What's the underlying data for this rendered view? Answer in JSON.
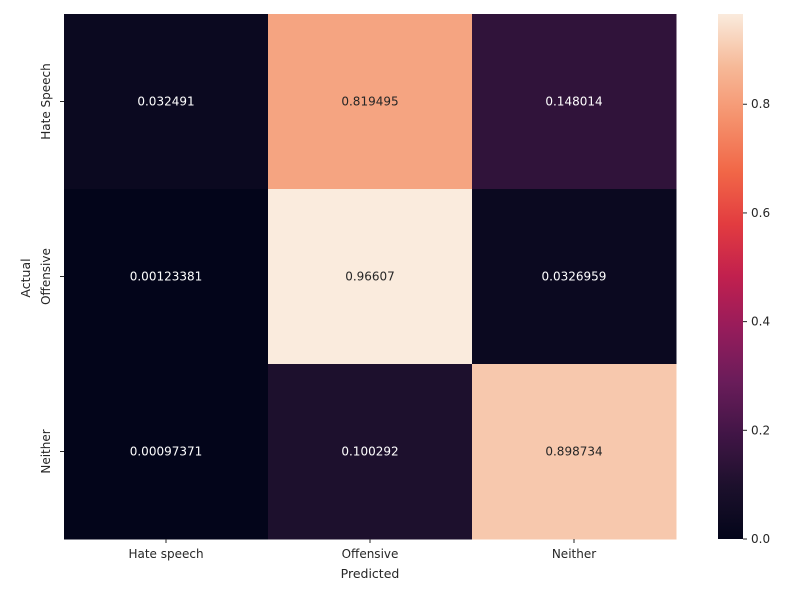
{
  "chart_data": {
    "type": "heatmap",
    "xlabel": "Predicted",
    "ylabel": "Actual",
    "x_categories": [
      "Hate speech",
      "Offensive",
      "Neither"
    ],
    "y_categories": [
      "Hate Speech",
      "Offensive",
      "Neither"
    ],
    "values": [
      [
        0.032491,
        0.819495,
        0.148014
      ],
      [
        0.00123381,
        0.96607,
        0.0326959
      ],
      [
        0.00097371,
        0.100292,
        0.898734
      ]
    ],
    "value_labels": [
      [
        "0.032491",
        "0.819495",
        "0.148014"
      ],
      [
        "0.00123381",
        "0.96607",
        "0.0326959"
      ],
      [
        "0.00097371",
        "0.100292",
        "0.898734"
      ]
    ],
    "colorbar": {
      "range": [
        0,
        0.96607
      ],
      "ticks": [
        0.0,
        0.2,
        0.4,
        0.6,
        0.8
      ],
      "tick_labels": [
        "0.0",
        "0.2",
        "0.4",
        "0.6",
        "0.8"
      ],
      "colormap": "rocket"
    },
    "grid": false,
    "legend": "colorbar-right"
  }
}
